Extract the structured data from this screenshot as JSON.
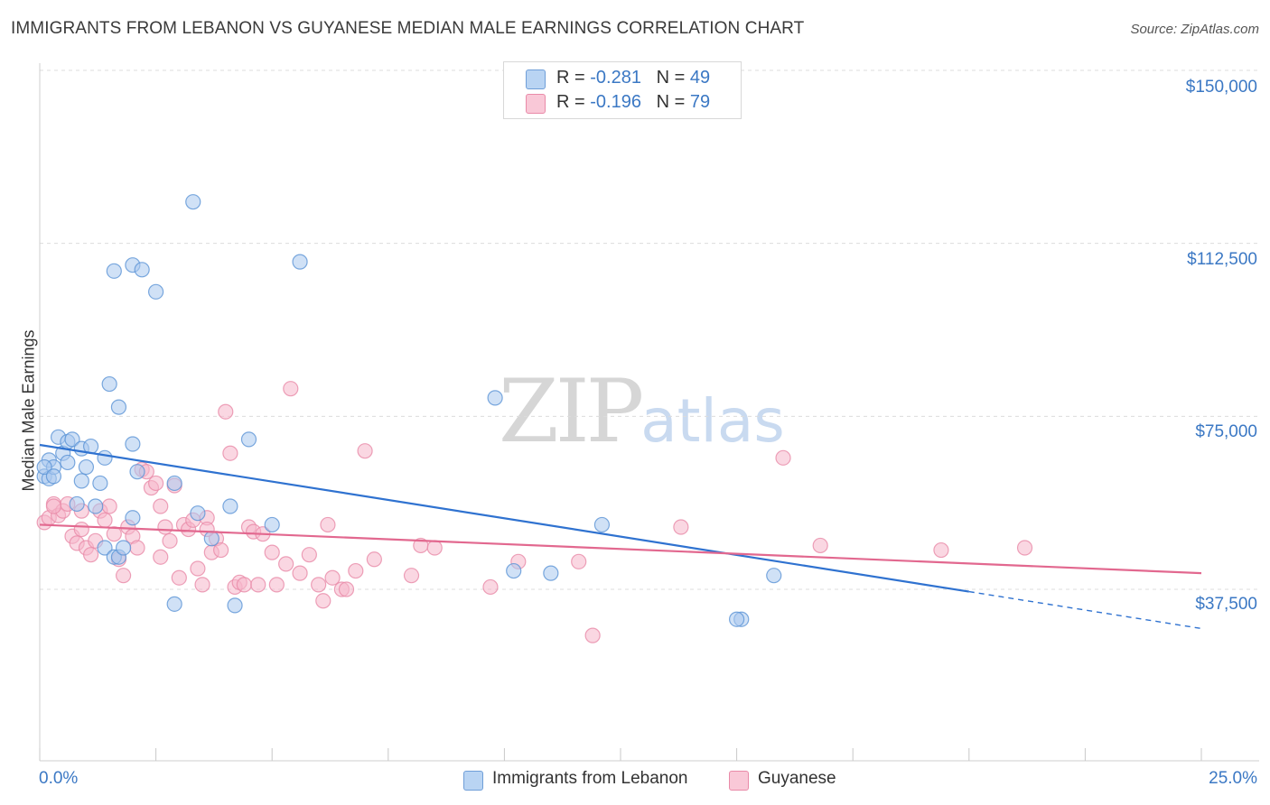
{
  "title": "IMMIGRANTS FROM LEBANON VS GUYANESE MEDIAN MALE EARNINGS CORRELATION CHART",
  "source": "Source: ZipAtlas.com",
  "watermark": {
    "zip": "ZIP",
    "atlas": "atlas"
  },
  "colors": {
    "blue_fill": "#a9c9ef",
    "blue_stroke": "#5b93d6",
    "blue_line": "#2f72d0",
    "pink_fill": "#f6b7ca",
    "pink_stroke": "#e98aa8",
    "pink_line": "#e2688f",
    "axis_text": "#3b78c4",
    "grid": "#dcdcdc"
  },
  "legend": {
    "rows": [
      {
        "r_label": "R = ",
        "r_value": "-0.281",
        "n_label": "N = ",
        "n_value": "49"
      },
      {
        "r_label": "R = ",
        "r_value": "-0.196",
        "n_label": "N = ",
        "n_value": "79"
      }
    ]
  },
  "chart_data": {
    "type": "scatter",
    "title": "IMMIGRANTS FROM LEBANON VS GUYANESE MEDIAN MALE EARNINGS CORRELATION CHART",
    "xlabel": "",
    "ylabel": "Median Male Earnings",
    "xlim": [
      0,
      25
    ],
    "ylim": [
      0,
      155000
    ],
    "x_tick_labels": [
      "0.0%",
      "25.0%"
    ],
    "y_ticks": [
      37500,
      75000,
      112500,
      150000
    ],
    "y_tick_labels": [
      "$37,500",
      "$75,000",
      "$112,500",
      "$150,000"
    ],
    "legend_position": "top-center",
    "series": [
      {
        "name": "Immigrants from Lebanon",
        "r": -0.281,
        "n": 49,
        "trend": {
          "x0": 0,
          "y0": 68800,
          "x1": 20,
          "y1": 37000,
          "dash_to_x": 25,
          "dash_to_y": 29000
        },
        "points": [
          [
            0.1,
            62000
          ],
          [
            0.2,
            61500
          ],
          [
            0.2,
            65500
          ],
          [
            0.3,
            64000
          ],
          [
            0.4,
            70500
          ],
          [
            0.5,
            67000
          ],
          [
            0.6,
            65000
          ],
          [
            0.6,
            69500
          ],
          [
            0.7,
            70000
          ],
          [
            0.9,
            68000
          ],
          [
            0.9,
            61000
          ],
          [
            1.0,
            64000
          ],
          [
            1.1,
            68500
          ],
          [
            1.2,
            55500
          ],
          [
            1.3,
            60500
          ],
          [
            1.4,
            66000
          ],
          [
            0.8,
            56000
          ],
          [
            1.5,
            82000
          ],
          [
            1.6,
            106500
          ],
          [
            2.0,
            107800
          ],
          [
            2.2,
            106800
          ],
          [
            2.5,
            102000
          ],
          [
            1.7,
            77000
          ],
          [
            2.0,
            69000
          ],
          [
            2.1,
            63000
          ],
          [
            2.9,
            60500
          ],
          [
            2.0,
            53000
          ],
          [
            1.4,
            46500
          ],
          [
            1.6,
            44500
          ],
          [
            1.7,
            44500
          ],
          [
            1.8,
            46500
          ],
          [
            3.3,
            121500
          ],
          [
            3.4,
            54000
          ],
          [
            3.7,
            48500
          ],
          [
            4.1,
            55500
          ],
          [
            4.5,
            70000
          ],
          [
            5.0,
            51500
          ],
          [
            5.6,
            108500
          ],
          [
            4.2,
            34000
          ],
          [
            2.9,
            34300
          ],
          [
            9.8,
            79000
          ],
          [
            10.2,
            41500
          ],
          [
            11.0,
            41000
          ],
          [
            12.1,
            51500
          ],
          [
            15.1,
            31000
          ],
          [
            15.0,
            31000
          ],
          [
            15.8,
            40500
          ],
          [
            0.1,
            64000
          ],
          [
            0.3,
            62000
          ]
        ]
      },
      {
        "name": "Guyanese",
        "r": -0.196,
        "n": 79,
        "trend": {
          "x0": 0,
          "y0": 51500,
          "x1": 25,
          "y1": 41000
        },
        "points": [
          [
            0.1,
            52000
          ],
          [
            0.2,
            53000
          ],
          [
            0.3,
            56000
          ],
          [
            0.4,
            53500
          ],
          [
            0.5,
            54500
          ],
          [
            0.6,
            56000
          ],
          [
            0.7,
            49000
          ],
          [
            0.8,
            47500
          ],
          [
            0.9,
            50500
          ],
          [
            1.0,
            46500
          ],
          [
            1.1,
            45000
          ],
          [
            1.2,
            48000
          ],
          [
            1.3,
            54500
          ],
          [
            1.4,
            52500
          ],
          [
            1.5,
            55500
          ],
          [
            1.6,
            49500
          ],
          [
            1.7,
            44000
          ],
          [
            1.8,
            40500
          ],
          [
            1.9,
            51000
          ],
          [
            2.0,
            49000
          ],
          [
            2.1,
            46500
          ],
          [
            2.2,
            63500
          ],
          [
            2.3,
            63000
          ],
          [
            2.4,
            59500
          ],
          [
            2.5,
            60500
          ],
          [
            2.6,
            44500
          ],
          [
            2.7,
            51000
          ],
          [
            2.8,
            48000
          ],
          [
            2.9,
            60000
          ],
          [
            3.0,
            40000
          ],
          [
            3.1,
            51500
          ],
          [
            3.2,
            50500
          ],
          [
            3.3,
            52500
          ],
          [
            3.4,
            42000
          ],
          [
            3.5,
            38500
          ],
          [
            3.6,
            53000
          ],
          [
            3.7,
            45500
          ],
          [
            3.8,
            48500
          ],
          [
            3.9,
            46000
          ],
          [
            4.0,
            76000
          ],
          [
            4.1,
            67000
          ],
          [
            4.2,
            38000
          ],
          [
            4.3,
            39000
          ],
          [
            4.4,
            38500
          ],
          [
            4.5,
            51000
          ],
          [
            4.6,
            50000
          ],
          [
            4.7,
            38500
          ],
          [
            4.8,
            49500
          ],
          [
            5.0,
            45500
          ],
          [
            5.1,
            38500
          ],
          [
            5.3,
            43000
          ],
          [
            5.4,
            81000
          ],
          [
            5.6,
            41000
          ],
          [
            5.8,
            45000
          ],
          [
            6.0,
            38500
          ],
          [
            6.1,
            35000
          ],
          [
            6.2,
            51500
          ],
          [
            6.3,
            40000
          ],
          [
            6.5,
            37500
          ],
          [
            6.6,
            37500
          ],
          [
            6.8,
            41500
          ],
          [
            7.0,
            67500
          ],
          [
            7.2,
            44000
          ],
          [
            8.0,
            40500
          ],
          [
            8.2,
            47000
          ],
          [
            8.5,
            46500
          ],
          [
            9.7,
            38000
          ],
          [
            10.3,
            43500
          ],
          [
            11.6,
            43500
          ],
          [
            11.9,
            27500
          ],
          [
            13.8,
            51000
          ],
          [
            16.0,
            66000
          ],
          [
            16.8,
            47000
          ],
          [
            19.4,
            46000
          ],
          [
            21.2,
            46500
          ],
          [
            0.3,
            55500
          ],
          [
            2.6,
            55500
          ],
          [
            0.9,
            54500
          ],
          [
            3.6,
            50500
          ]
        ]
      }
    ]
  }
}
